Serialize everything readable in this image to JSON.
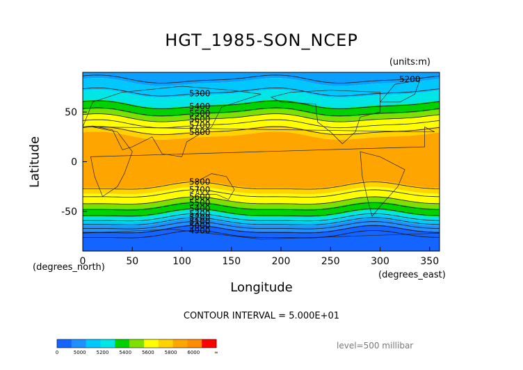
{
  "chart_data": {
    "type": "heatmap",
    "title": "HGT_1985-SON_NCEP",
    "units": "(units:m)",
    "xlabel": "Longitude",
    "ylabel": "Latitude",
    "x_unit": "(degrees_north)",
    "y_unit": "(degrees_east)",
    "xlim": [
      0,
      360
    ],
    "ylim": [
      -90,
      90
    ],
    "x_ticks": [
      0,
      50,
      100,
      150,
      200,
      250,
      300,
      350
    ],
    "y_ticks": [
      50,
      0,
      -50
    ],
    "contour_interval": "CONTOUR INTERVAL = 5.000E+01",
    "level": "level=500 millibar",
    "contour_labels": [
      "5200",
      "5300",
      "5400",
      "5500",
      "5600",
      "5700",
      "5800",
      "5800",
      "5700",
      "5600",
      "5500",
      "5400",
      "5300",
      "5200",
      "5100",
      "5000",
      "4900"
    ],
    "colorbar": {
      "labels": [
        "0",
        "5000",
        "5200",
        "5400",
        "5600",
        "5800",
        "6000",
        "∞"
      ],
      "colors": [
        "#1464ff",
        "#1e90ff",
        "#00c8ff",
        "#00e6e6",
        "#00d200",
        "#7fe000",
        "#ffff00",
        "#ffd200",
        "#ffa500",
        "#ff8c00",
        "#ff0000"
      ]
    },
    "bands": [
      {
        "lat_top": 90,
        "lat_bot": 80,
        "color": "#0aa0ff"
      },
      {
        "lat_top": 80,
        "lat_bot": 68,
        "color": "#00c8ff"
      },
      {
        "lat_top": 68,
        "lat_bot": 58,
        "color": "#00e6e6"
      },
      {
        "lat_top": 58,
        "lat_bot": 49,
        "color": "#00d200"
      },
      {
        "lat_top": 49,
        "lat_bot": 44,
        "color": "#7fe000"
      },
      {
        "lat_top": 44,
        "lat_bot": 32,
        "color": "#ffff00"
      },
      {
        "lat_top": 32,
        "lat_bot": 26,
        "color": "#ffd200"
      },
      {
        "lat_top": 26,
        "lat_bot": -24,
        "color": "#ffa500"
      },
      {
        "lat_top": -24,
        "lat_bot": -30,
        "color": "#ffd200"
      },
      {
        "lat_top": -30,
        "lat_bot": -40,
        "color": "#ffff00"
      },
      {
        "lat_top": -40,
        "lat_bot": -45,
        "color": "#7fe000"
      },
      {
        "lat_top": -45,
        "lat_bot": -53,
        "color": "#00d200"
      },
      {
        "lat_top": -53,
        "lat_bot": -58,
        "color": "#00e6e6"
      },
      {
        "lat_top": -58,
        "lat_bot": -62,
        "color": "#00c8ff"
      },
      {
        "lat_top": -62,
        "lat_bot": -68,
        "color": "#1e90ff"
      },
      {
        "lat_top": -68,
        "lat_bot": -90,
        "color": "#1464ff"
      }
    ],
    "contours": [
      {
        "value": "5200",
        "lat": 83
      },
      {
        "value": "5300",
        "lat": 70
      },
      {
        "value": "5400",
        "lat": 57
      },
      {
        "value": "5500",
        "lat": 50
      },
      {
        "value": "5600",
        "lat": 44
      },
      {
        "value": "5700",
        "lat": 38
      },
      {
        "value": "5800",
        "lat": 31
      },
      {
        "value": "5800",
        "lat": -25
      },
      {
        "value": "5700",
        "lat": -33
      },
      {
        "value": "5600",
        "lat": -40
      },
      {
        "value": "5500",
        "lat": -46
      },
      {
        "value": "5400",
        "lat": -52
      },
      {
        "value": "5300",
        "lat": -57
      },
      {
        "value": "5200",
        "lat": -61
      },
      {
        "value": "5100",
        "lat": -65
      },
      {
        "value": "5000",
        "lat": -69
      },
      {
        "value": "4900",
        "lat": -74
      }
    ]
  }
}
